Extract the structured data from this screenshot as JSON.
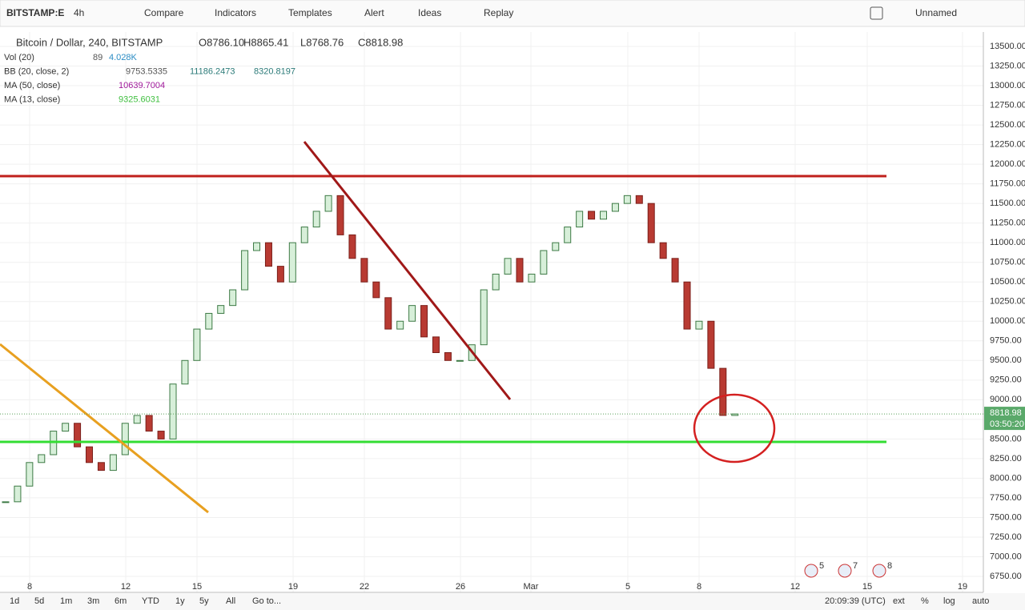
{
  "toolbar": {
    "symbol": "BITSTAMP:E",
    "interval": "4h",
    "items": [
      "Compare",
      "Indicators",
      "Templates",
      "Alert",
      "Ideas",
      "Replay"
    ],
    "layout_name": "Unnamed"
  },
  "legend": {
    "title": "Bitcoin / Dollar, 240, BITSTAMP",
    "ohlc": [
      "O8786.10",
      "H8865.41",
      "L8768.76",
      "C8818.98"
    ],
    "indicators": [
      {
        "name": "Vol (20)",
        "values": [
          "89",
          "4.028K"
        ],
        "colors": [
          "#555555",
          "#2b8cc4"
        ]
      },
      {
        "name": "BB (20, close, 2)",
        "values": [
          "9753.5335",
          "11186.2473",
          "8320.8197"
        ],
        "colors": [
          "#555555",
          "#2b7a78",
          "#2b7a78"
        ]
      },
      {
        "name": "MA (50, close)",
        "values": [
          "10639.7004"
        ],
        "colors": [
          "#a0199b"
        ]
      },
      {
        "name": "MA (13, close)",
        "values": [
          "9325.6031"
        ],
        "colors": [
          "#3fbf3f"
        ]
      }
    ]
  },
  "price_axis": {
    "ylim": [
      6750,
      13500
    ],
    "ticks": [
      {
        "value": 13500,
        "label": "13500.00"
      },
      {
        "value": 13250,
        "label": "13250.00"
      },
      {
        "value": 13000,
        "label": "13000.00"
      },
      {
        "value": 12750,
        "label": "12750.00"
      },
      {
        "value": 12500,
        "label": "12500.00"
      },
      {
        "value": 12250,
        "label": "12250.00"
      },
      {
        "value": 12000,
        "label": "12000.00"
      },
      {
        "value": 11750,
        "label": "11750.00"
      },
      {
        "value": 11500,
        "label": "11500.00"
      },
      {
        "value": 11250,
        "label": "11250.00"
      },
      {
        "value": 11000,
        "label": "11000.00"
      },
      {
        "value": 10750,
        "label": "10750.00"
      },
      {
        "value": 10500,
        "label": "10500.00"
      },
      {
        "value": 10250,
        "label": "10250.00"
      },
      {
        "value": 10000,
        "label": "10000.00"
      },
      {
        "value": 9750,
        "label": "9750.00"
      },
      {
        "value": 9500,
        "label": "9500.00"
      },
      {
        "value": 9250,
        "label": "9250.00"
      },
      {
        "value": 9000,
        "label": "9000.00"
      },
      {
        "value": 8750,
        "label": "8750.00"
      },
      {
        "value": 8500,
        "label": "8500.00"
      },
      {
        "value": 8250,
        "label": "8250.00"
      },
      {
        "value": 8000,
        "label": "8000.00"
      },
      {
        "value": 7750,
        "label": "7750.00"
      },
      {
        "value": 7500,
        "label": "7500.00"
      },
      {
        "value": 7250,
        "label": "7250.00"
      },
      {
        "value": 7000,
        "label": "7000.00"
      },
      {
        "value": 6750,
        "label": "6750.00"
      }
    ],
    "last_price": {
      "value": 8818.98,
      "label": "8818.98"
    },
    "countdown": "03:50:20"
  },
  "time_axis": [
    "8",
    "12",
    "15",
    "19",
    "22",
    "26",
    "Mar",
    "5",
    "8",
    "12",
    "15",
    "19"
  ],
  "candles": {
    "closes": [
      7700,
      7900,
      8200,
      8300,
      8600,
      8700,
      8400,
      8200,
      8100,
      8300,
      8700,
      8800,
      8600,
      8500,
      9200,
      9500,
      9900,
      10100,
      10200,
      10400,
      10900,
      11000,
      10700,
      10500,
      11000,
      11200,
      11400,
      11600,
      11100,
      10800,
      10500,
      10300,
      9900,
      10000,
      10200,
      9800,
      9600,
      9500,
      9500,
      9700,
      10400,
      10600,
      10800,
      10500,
      10600,
      10900,
      11000,
      11200,
      11400,
      11300,
      11400,
      11500,
      11600,
      11500,
      11000,
      10800,
      10500,
      9900,
      10000,
      9400,
      8800,
      8818.98
    ]
  },
  "events": [
    "5",
    "7",
    "8"
  ],
  "bottom_bar": {
    "ranges": [
      "1d",
      "5d",
      "1m",
      "3m",
      "6m",
      "YTD",
      "1y",
      "5y",
      "All",
      "Go to..."
    ],
    "clock": "20:09:39 (UTC)",
    "options": [
      "ext",
      "%",
      "log",
      "auto"
    ]
  }
}
